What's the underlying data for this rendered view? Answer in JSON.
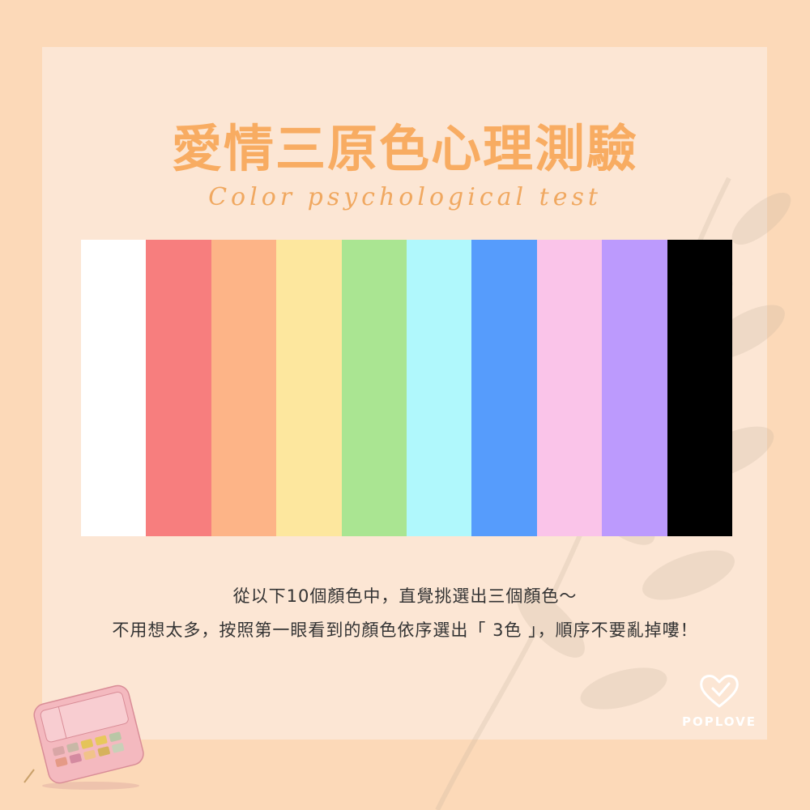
{
  "title": "愛情三原色心理測驗",
  "subtitle": "Color psychological test",
  "swatches": [
    {
      "name": "white",
      "color": "#ffffff"
    },
    {
      "name": "red",
      "color": "#f77e7e"
    },
    {
      "name": "orange",
      "color": "#fdb487"
    },
    {
      "name": "yellow",
      "color": "#fde79e"
    },
    {
      "name": "green",
      "color": "#aae592"
    },
    {
      "name": "cyan",
      "color": "#b0f8fc"
    },
    {
      "name": "blue",
      "color": "#569cfc"
    },
    {
      "name": "pink",
      "color": "#fac4e9"
    },
    {
      "name": "purple",
      "color": "#bc9afd"
    },
    {
      "name": "black",
      "color": "#000000"
    }
  ],
  "instructions": {
    "line1": "從以下10個顏色中，直覺挑選出三個顏色～",
    "line2": "不用想太多，按照第一眼看到的顏色依序選出「 3色 」，順序不要亂掉嘍！"
  },
  "brand": {
    "logo_icon": "heart-logo-icon",
    "name": "POPLOVE"
  },
  "colors": {
    "background": "#fcd9b8",
    "card": "#fce6d4",
    "title": "#f8ac62",
    "body_text": "#333333"
  }
}
